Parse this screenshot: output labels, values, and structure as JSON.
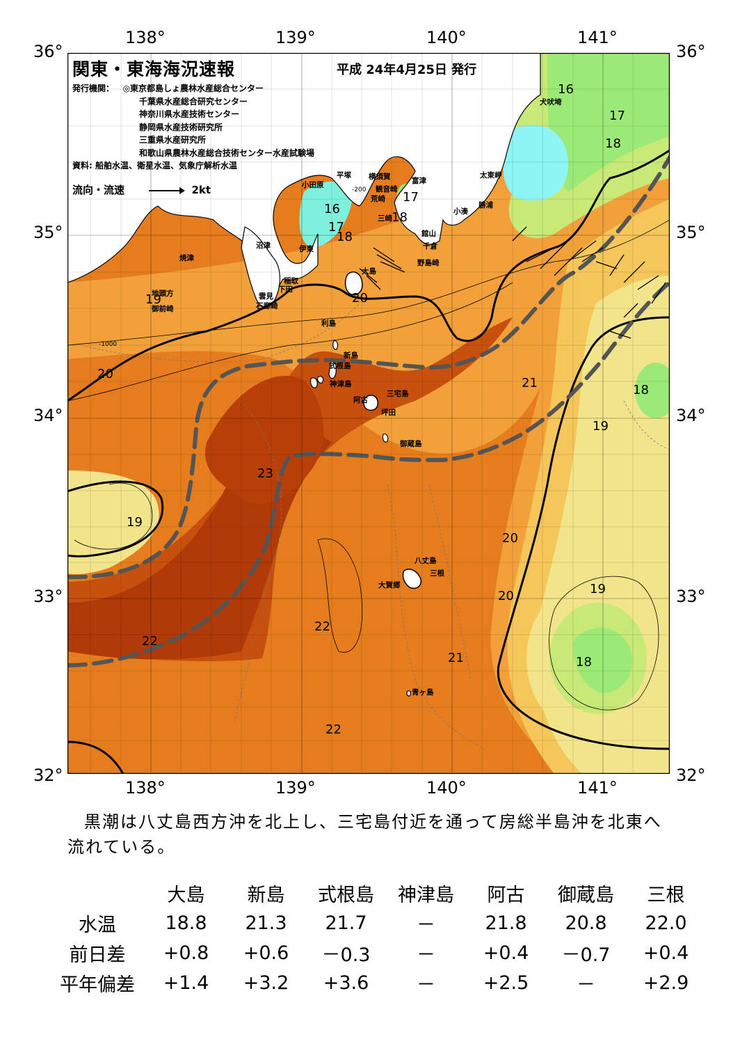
{
  "header": {
    "title": "関東・東海海況速報",
    "date": "平成 24年4月25日 発行",
    "issuer_label": "発行機関：",
    "issuers": [
      "◎東京都島しょ農林水産総合センター",
      "千葉県水産総合研究センター",
      "神奈川県水産技術センター",
      "静岡県水産技術研究所",
      "三重県水産研究所",
      "和歌山県農林水産総合技術センター水産試験場"
    ],
    "source": "資料: 船舶水温、衛星水温、気象庁解析水温",
    "legend_label": "流向・流速",
    "legend_speed": "2kt"
  },
  "axes": {
    "lon_top": [
      "138°",
      "139°",
      "140°",
      "141°"
    ],
    "lon_bottom": [
      "138°",
      "139°",
      "140°",
      "141°"
    ],
    "lat_left": [
      "36°",
      "35°",
      "34°",
      "33°",
      "32°"
    ],
    "lat_right": [
      "36°",
      "35°",
      "34°",
      "33°",
      "32°"
    ]
  },
  "colors": {
    "sst_16": "#7ef0dc",
    "sst_17": "#9bea78",
    "sst_18": "#c8e878",
    "sst_19": "#f2e48a",
    "sst_20": "#f5c65a",
    "sst_21": "#f2a03a",
    "sst_22": "#e57d1e",
    "sst_23": "#c8500e",
    "sst_24": "#b03a08",
    "cold_cyan": "#8ef4f4",
    "kuroshio_axis": "#555555",
    "land": "#ffffff"
  },
  "places": [
    {
      "name": "犬吠埼"
    },
    {
      "name": "太東岬"
    },
    {
      "name": "勝浦"
    },
    {
      "name": "小湊"
    },
    {
      "name": "富津"
    },
    {
      "name": "観音崎"
    },
    {
      "name": "荒崎"
    },
    {
      "name": "三崎"
    },
    {
      "name": "館山"
    },
    {
      "name": "千倉"
    },
    {
      "name": "野島崎"
    },
    {
      "name": "横須賀"
    },
    {
      "name": "平塚"
    },
    {
      "name": "小田原"
    },
    {
      "name": "伊東"
    },
    {
      "name": "沼津"
    },
    {
      "name": "焼津"
    },
    {
      "name": "稲取"
    },
    {
      "name": "下田"
    },
    {
      "name": "雲見"
    },
    {
      "name": "石廊崎"
    },
    {
      "name": "地頭方"
    },
    {
      "name": "御前崎"
    },
    {
      "name": "大島"
    },
    {
      "name": "利島"
    },
    {
      "name": "新島"
    },
    {
      "name": "式根島"
    },
    {
      "name": "神津島"
    },
    {
      "name": "三宅島"
    },
    {
      "name": "阿古"
    },
    {
      "name": "坪田"
    },
    {
      "name": "御蔵島"
    },
    {
      "name": "八丈島"
    },
    {
      "name": "三根"
    },
    {
      "name": "大賀郷"
    },
    {
      "name": "青ヶ島"
    }
  ],
  "isotherm_labels": [
    "16",
    "17",
    "18",
    "16",
    "17",
    "18",
    "17",
    "18",
    "19",
    "20",
    "20",
    "21",
    "18",
    "19",
    "23",
    "19",
    "20",
    "20",
    "19",
    "18",
    "22",
    "21",
    "22",
    "22"
  ],
  "depth_labels": [
    "-200",
    "-1000"
  ],
  "summary": "黒潮は八丈島西方沖を北上し、三宅島付近を通って房総半島沖を北東へ流れている。",
  "station_table": {
    "stations": [
      "大島",
      "新島",
      "式根島",
      "神津島",
      "阿古",
      "御蔵島",
      "三根"
    ],
    "rows": [
      {
        "label": "水温",
        "values": [
          "18.8",
          "21.3",
          "21.7",
          "－",
          "21.8",
          "20.8",
          "22.0"
        ]
      },
      {
        "label": "前日差",
        "values": [
          "+0.8",
          "+0.6",
          "－0.3",
          "－",
          "+0.4",
          "－0.7",
          "+0.4"
        ]
      },
      {
        "label": "平年偏差",
        "values": [
          "+1.4",
          "+3.2",
          "+3.6",
          "－",
          "+2.5",
          "－",
          "+2.9"
        ]
      }
    ]
  }
}
